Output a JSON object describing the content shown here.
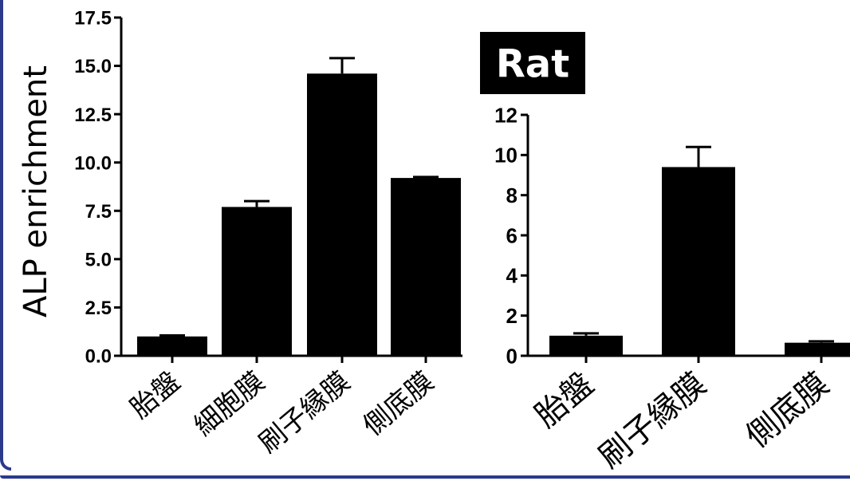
{
  "chart_data": [
    {
      "type": "bar",
      "title": "",
      "xlabel": "",
      "ylabel": "ALP enrichment",
      "ylim": [
        0,
        17.5
      ],
      "yticks": [
        "0.0",
        "2.5",
        "5.0",
        "7.5",
        "10.0",
        "12.5",
        "15.0",
        "17.5"
      ],
      "categories": [
        "胎盤",
        "細胞膜",
        "刷子縁膜",
        "側底膜"
      ],
      "values": [
        1.0,
        7.7,
        14.6,
        9.2
      ],
      "errors": [
        0.05,
        0.3,
        0.8,
        0.05
      ],
      "bar_color": "#000000",
      "grid": false
    },
    {
      "type": "bar",
      "title": "Rat",
      "xlabel": "",
      "ylabel": "",
      "ylim": [
        0,
        12
      ],
      "yticks": [
        "0",
        "2",
        "4",
        "6",
        "8",
        "10",
        "12"
      ],
      "categories": [
        "胎盤",
        "刷子縁膜",
        "側底膜"
      ],
      "values": [
        1.0,
        9.4,
        0.65
      ],
      "errors": [
        0.12,
        1.0,
        0.07
      ],
      "bar_color": "#000000",
      "grid": false
    }
  ],
  "frame_color": "#2b3a8c"
}
